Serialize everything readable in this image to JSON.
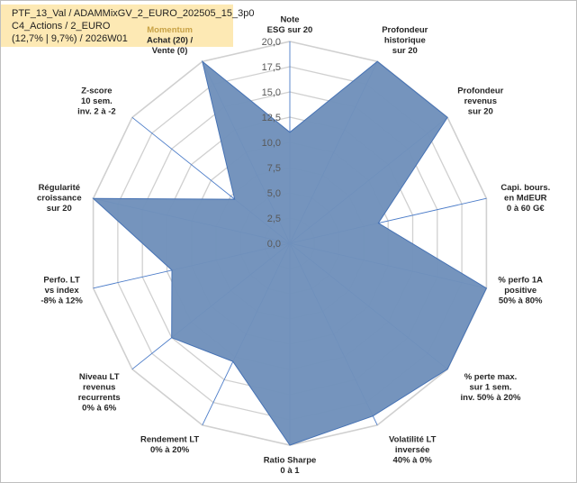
{
  "header": {
    "line1": "PTF_13_Val / ADAMMixGV_2_EURO_202505_15_3p0",
    "line2": "C4_Actions / 2_EURO",
    "line3": "(12,7% | 9,7%) / 2026W01"
  },
  "colors": {
    "fill": "#7191bb",
    "stroke": "#4672b4",
    "grid": "#d0d0d0",
    "spoke": "#4a7bc8",
    "header_bg": "#fde9b4",
    "highlight_label": "#c8a246"
  },
  "chart_data": {
    "type": "radar",
    "title": "",
    "rlim": [
      0,
      20
    ],
    "ticks": [
      "0,0",
      "2,5",
      "5,0",
      "7,5",
      "10,0",
      "12,5",
      "15,0",
      "17,5",
      "20,0"
    ],
    "axes": [
      {
        "lines": [
          "Note",
          "ESG sur 20"
        ],
        "value": 11
      },
      {
        "lines": [
          "Profondeur",
          "historique",
          "sur 20"
        ],
        "value": 20
      },
      {
        "lines": [
          "Profondeur",
          "revenus",
          "sur 20"
        ],
        "value": 20
      },
      {
        "lines": [
          "Capi. bours.",
          "en MdEUR",
          "0 à 60 G€"
        ],
        "value": 9
      },
      {
        "lines": [
          "% perfo 1A",
          "positive",
          "50% à 80%"
        ],
        "value": 20
      },
      {
        "lines": [
          "% perte max.",
          "sur 1 sem.",
          "inv. 50% à 20%"
        ],
        "value": 20
      },
      {
        "lines": [
          "Volatilité LT",
          "inversée",
          "40% à 0%"
        ],
        "value": 19
      },
      {
        "lines": [
          "Ratio Sharpe",
          "0 à 1"
        ],
        "value": 20
      },
      {
        "lines": [
          "Rendement LT",
          "0% à 20%"
        ],
        "value": 13
      },
      {
        "lines": [
          "Niveau LT",
          "revenus",
          "recurrents",
          "0% à 6%"
        ],
        "value": 15
      },
      {
        "lines": [
          "Perfo. LT",
          "vs index",
          "-8% à 12%"
        ],
        "value": 12
      },
      {
        "lines": [
          "Régularité",
          "croissance",
          "sur 20"
        ],
        "value": 20
      },
      {
        "lines": [
          "Z-score",
          "10 sem.",
          "inv. 2 à -2"
        ],
        "value": 7
      },
      {
        "lines": [
          "Momentum",
          "Achat (20) /",
          "Vente (0)"
        ],
        "value": 20,
        "highlight_first_line": true
      }
    ]
  }
}
